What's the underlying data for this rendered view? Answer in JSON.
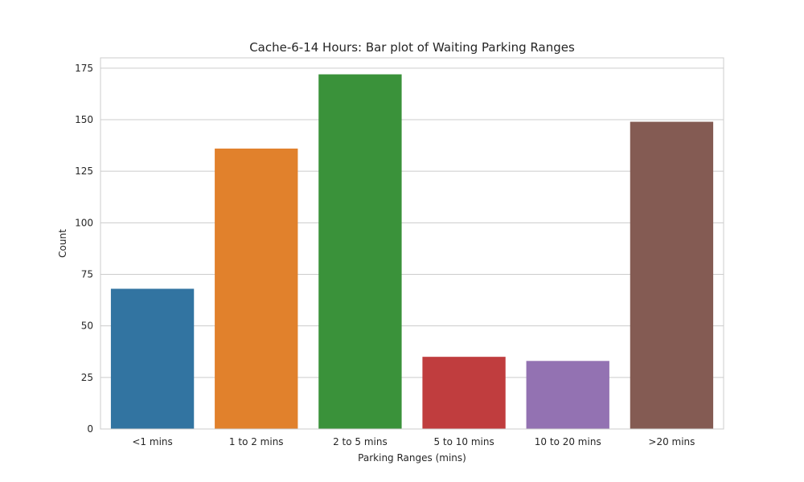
{
  "chart_data": {
    "type": "bar",
    "title": "Cache-6-14 Hours: Bar plot of Waiting Parking Ranges",
    "xlabel": "Parking Ranges (mins)",
    "ylabel": "Count",
    "categories": [
      "<1 mins",
      "1 to 2 mins",
      "2 to 5 mins",
      "5 to 10 mins",
      "10 to 20 mins",
      ">20 mins"
    ],
    "values": [
      68,
      136,
      172,
      35,
      33,
      149
    ],
    "colors": [
      "#3274a1",
      "#e1812c",
      "#3a923a",
      "#c03d3e",
      "#9372b2",
      "#845b53"
    ],
    "ylim": [
      0,
      180
    ],
    "yticks": [
      0,
      25,
      50,
      75,
      100,
      125,
      150,
      175
    ],
    "grid": "horizontal"
  }
}
